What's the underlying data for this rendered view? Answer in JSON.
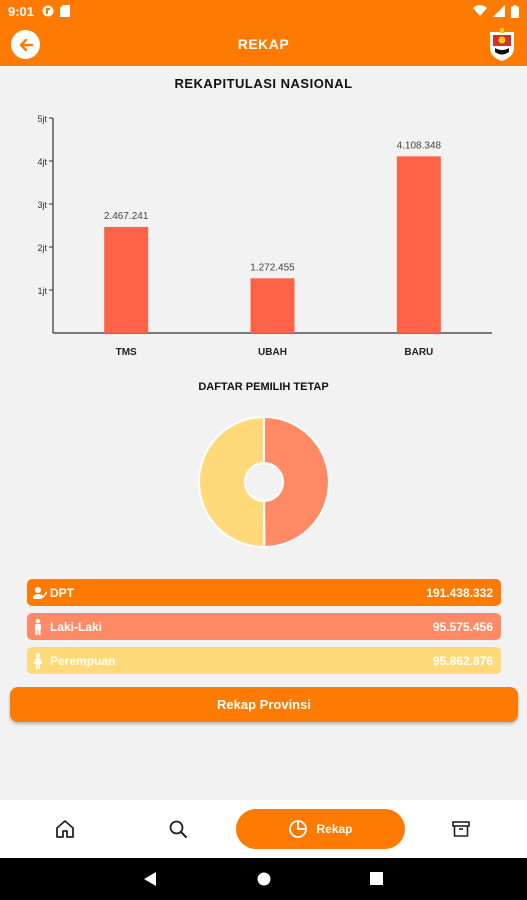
{
  "status_bar": {
    "time": "9:01"
  },
  "header": {
    "title": "REKAP"
  },
  "main": {
    "chart_title": "REKAPITULASI NASIONAL",
    "donut_title": "DAFTAR PEMILIH TETAP",
    "button_label": "Rekap Provinsi"
  },
  "chart_data": {
    "type": "bar",
    "categories": [
      "TMS",
      "UBAH",
      "BARU"
    ],
    "values": [
      2467241,
      1272455,
      4108348
    ],
    "value_labels": [
      "2.467.241",
      "1.272.455",
      "4.108.348"
    ],
    "yticks": [
      "1jt",
      "2jt",
      "3jt",
      "4jt",
      "5jt"
    ],
    "ylim": [
      0,
      5000000
    ],
    "bar_color": "#ff6347",
    "title": "REKAPITULASI NASIONAL"
  },
  "donut_data": {
    "type": "pie",
    "labels": [
      "Laki-Laki",
      "Perempuan"
    ],
    "values": [
      95575456,
      95862876
    ],
    "colors": [
      "#ff8a65",
      "#ffd97a"
    ]
  },
  "stats": [
    {
      "label": "DPT",
      "value": "191.438.332",
      "color": "#ff7a00",
      "icon": "voter-icon"
    },
    {
      "label": "Laki-Laki",
      "value": "95.575.456",
      "color": "#ff8a65",
      "icon": "male-icon"
    },
    {
      "label": "Perempuan",
      "value": "95.862.876",
      "color": "#ffd97a",
      "icon": "female-icon"
    }
  ],
  "nav": {
    "active_label": "Rekap"
  },
  "colors": {
    "accent": "#ff7a00"
  }
}
